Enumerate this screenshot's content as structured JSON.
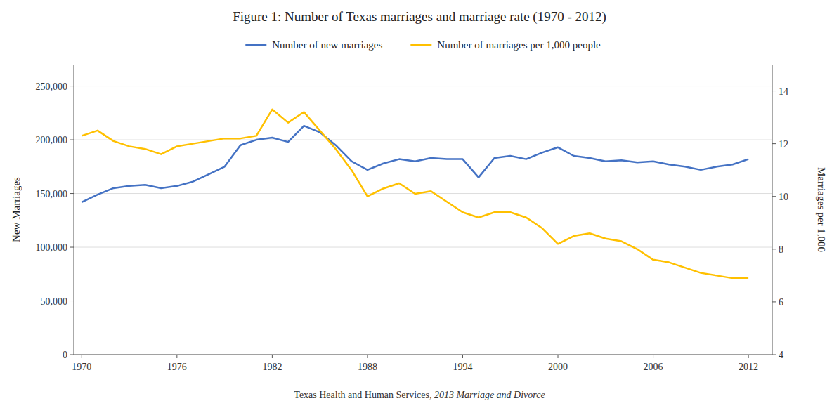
{
  "chart_data": {
    "type": "line",
    "title": "Figure 1: Number of Texas marriages and marriage rate (1970 - 2012)",
    "annotations": [
      "Texas Health and Human Services, ",
      "2013 Marriage and Divorce"
    ],
    "ylabel": "New Marriages",
    "y2label": "Marriages per 1,000",
    "x": [
      1970,
      1971,
      1972,
      1973,
      1974,
      1975,
      1976,
      1977,
      1978,
      1979,
      1980,
      1981,
      1982,
      1983,
      1984,
      1985,
      1986,
      1987,
      1988,
      1989,
      1990,
      1991,
      1992,
      1993,
      1994,
      1995,
      1996,
      1997,
      1998,
      1999,
      2000,
      2001,
      2002,
      2003,
      2004,
      2005,
      2006,
      2007,
      2008,
      2009,
      2010,
      2011,
      2012
    ],
    "series": [
      {
        "name": "Number of new marriages",
        "color": "#4472C4",
        "values": [
          142000,
          149000,
          155000,
          157000,
          158000,
          155000,
          157000,
          161000,
          168000,
          175000,
          195000,
          200000,
          202000,
          198000,
          213000,
          207000,
          195000,
          180000,
          172000,
          178000,
          182000,
          180000,
          183000,
          182000,
          182000,
          165000,
          183000,
          185000,
          182000,
          188000,
          193000,
          185000,
          183000,
          180000,
          181000,
          179000,
          180000,
          177000,
          175000,
          172000,
          175000,
          177000,
          182000
        ]
      },
      {
        "name": "Number of marriages per 1,000 people",
        "color": "#FFC000",
        "axis": "y2",
        "values": [
          12.3,
          12.5,
          12.1,
          11.9,
          11.8,
          11.6,
          11.9,
          12.0,
          12.1,
          12.2,
          12.2,
          12.3,
          13.3,
          12.8,
          13.2,
          12.5,
          11.8,
          11.0,
          10.0,
          10.3,
          10.5,
          10.1,
          10.2,
          9.8,
          9.4,
          9.2,
          9.4,
          9.4,
          9.2,
          8.8,
          8.2,
          8.5,
          8.6,
          8.4,
          8.3,
          8.0,
          7.6,
          7.5,
          7.3,
          7.1,
          7.0,
          6.9,
          6.9
        ]
      }
    ],
    "xlim": [
      1969.5,
      2013.5
    ],
    "xticks": [
      1970,
      1976,
      1982,
      1988,
      1994,
      2000,
      2006,
      2012
    ],
    "ylim": [
      0,
      270000
    ],
    "yticks": [
      0,
      {
        "value": 50000,
        "label": "50,000"
      },
      {
        "value": 100000,
        "label": "100,000"
      },
      {
        "value": 150000,
        "label": "150,000"
      },
      {
        "value": 200000,
        "label": "200,000"
      },
      {
        "value": 250000,
        "label": "250,000"
      }
    ],
    "y2lim": [
      4,
      15
    ],
    "y2ticks": [
      4,
      6,
      8,
      10,
      12,
      14
    ],
    "grid": true,
    "legend": "top"
  }
}
